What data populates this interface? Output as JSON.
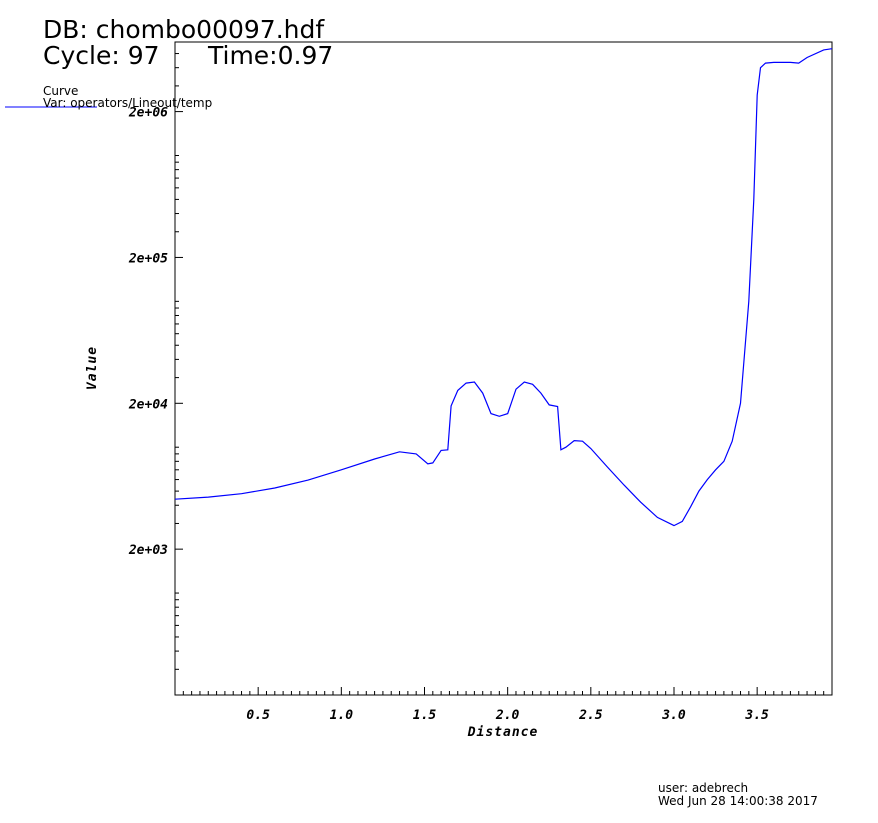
{
  "header": {
    "db_label": "DB: chombo00097.hdf",
    "cycle_label": "Cycle: 97",
    "time_label": "Time:0.97"
  },
  "legend": {
    "title": "Curve",
    "var_label": "Var: operators/Lineout/temp"
  },
  "footer": {
    "user_label": "user: adebrech",
    "date_label": "Wed Jun 28 14:00:38 2017"
  },
  "colors": {
    "curve": "#0000ff",
    "axis": "#000000"
  },
  "chart_data": {
    "type": "line",
    "title": "",
    "xlabel": "Distance",
    "ylabel": "Value",
    "xlim": [
      0.0,
      3.95
    ],
    "ylim": [
      200,
      6000000
    ],
    "y_scale": "log",
    "grid": false,
    "legend_position": "top-left",
    "x_ticks": [
      {
        "value": 0.5,
        "label": "0.5"
      },
      {
        "value": 1.0,
        "label": "1.0"
      },
      {
        "value": 1.5,
        "label": "1.5"
      },
      {
        "value": 2.0,
        "label": "2.0"
      },
      {
        "value": 2.5,
        "label": "2.5"
      },
      {
        "value": 3.0,
        "label": "3.0"
      },
      {
        "value": 3.5,
        "label": "3.5"
      }
    ],
    "y_ticks": [
      {
        "value": 2000,
        "label": "2e+03"
      },
      {
        "value": 20000,
        "label": "2e+04"
      },
      {
        "value": 200000,
        "label": "2e+05"
      },
      {
        "value": 2000000,
        "label": "2e+06"
      }
    ],
    "series": [
      {
        "name": "Curve",
        "x": [
          0.0,
          0.2,
          0.4,
          0.6,
          0.8,
          1.0,
          1.2,
          1.35,
          1.45,
          1.52,
          1.55,
          1.6,
          1.64,
          1.66,
          1.7,
          1.75,
          1.8,
          1.85,
          1.9,
          1.95,
          2.0,
          2.05,
          2.1,
          2.15,
          2.2,
          2.25,
          2.3,
          2.32,
          2.35,
          2.4,
          2.45,
          2.5,
          2.6,
          2.7,
          2.8,
          2.9,
          3.0,
          3.05,
          3.1,
          3.15,
          3.2,
          3.25,
          3.3,
          3.35,
          3.4,
          3.45,
          3.48,
          3.5,
          3.52,
          3.55,
          3.6,
          3.7,
          3.75,
          3.8,
          3.9,
          3.95
        ],
        "y": [
          4400,
          4550,
          4800,
          5250,
          5950,
          7000,
          8300,
          9300,
          9000,
          7700,
          7800,
          9500,
          9600,
          19200,
          24500,
          27500,
          28000,
          23500,
          17000,
          16300,
          17000,
          25000,
          28000,
          27000,
          23500,
          19500,
          19000,
          9600,
          10000,
          11100,
          11000,
          9800,
          7300,
          5500,
          4200,
          3300,
          2900,
          3100,
          3900,
          5000,
          6000,
          7000,
          8000,
          11000,
          20000,
          100000,
          500000,
          2600000,
          4000000,
          4300000,
          4350000,
          4350000,
          4300000,
          4700000,
          5300000,
          5400000
        ]
      }
    ]
  }
}
